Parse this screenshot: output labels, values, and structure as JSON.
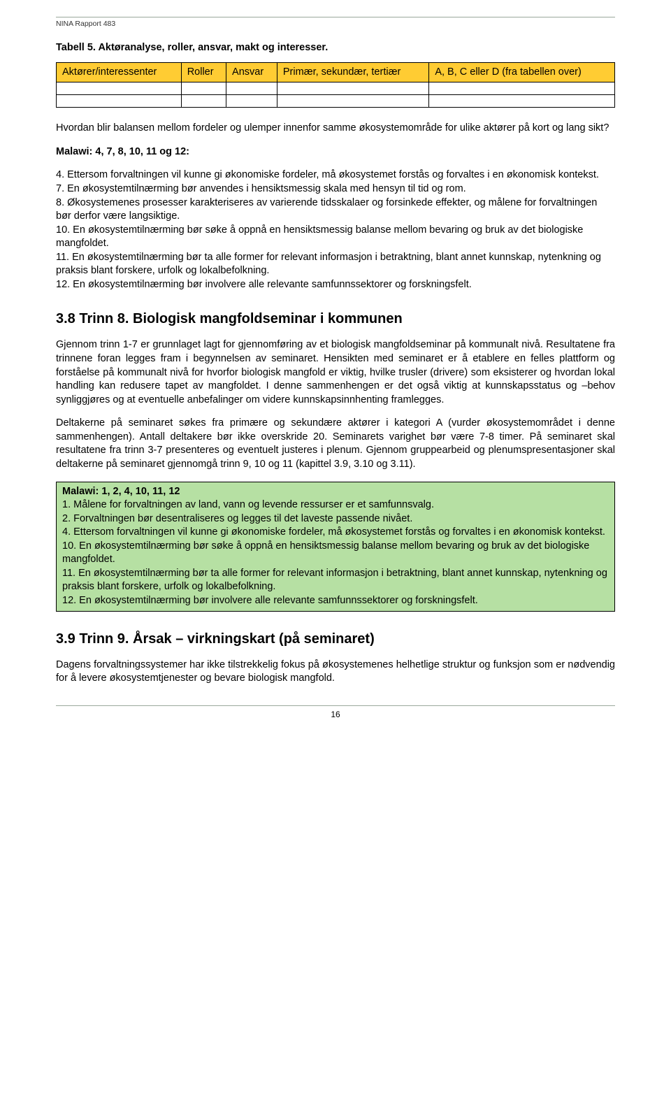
{
  "header": {
    "report": "NINA Rapport 483"
  },
  "caption": {
    "label": "Tabell 5.",
    "text": " Aktøranalyse, roller, ansvar, makt og interesser."
  },
  "table": {
    "header_bg": "#ffcc33",
    "border_color": "#000000",
    "columns": [
      "Aktører/interessenter",
      "Roller",
      "Ansvar",
      "Primær, sekundær, tertiær",
      "A, B, C eller D (fra tabellen over)"
    ],
    "empty_rows": 2
  },
  "section1": {
    "intro": "Hvordan blir balansen mellom fordeler og ulemper innenfor samme økosystemområde for ulike aktører på kort og lang sikt?",
    "malawi_label": "Malawi: 4, 7, 8, 10, 11 og 12:",
    "points": [
      "4. Ettersom forvaltningen vil kunne gi økonomiske fordeler, må økosystemet forstås og forvaltes i en økonomisk kontekst.",
      "7. En økosystemtilnærming bør anvendes i hensiktsmessig skala med hensyn til tid og rom.",
      "8. Økosystemenes prosesser karakteriseres av varierende tidsskalaer og forsinkede effekter, og målene for forvaltningen bør derfor være langsiktige.",
      "10. En økosystemtilnærming bør søke å oppnå en hensiktsmessig balanse mellom bevaring og bruk av det biologiske mangfoldet.",
      "11. En økosystemtilnærming bør ta alle former for relevant informasjon i betraktning, blant annet kunnskap, nytenkning og praksis blant forskere, urfolk og lokalbefolkning.",
      "12. En økosystemtilnærming bør involvere alle relevante samfunnssektorer og forskningsfelt."
    ]
  },
  "section38": {
    "heading": "3.8 Trinn 8. Biologisk mangfoldseminar i kommunen",
    "p1": "Gjennom trinn 1-7 er grunnlaget lagt for gjennomføring av et biologisk mangfoldseminar på kommunalt nivå. Resultatene fra trinnene foran legges fram i begynnelsen av seminaret. Hensikten med seminaret er å etablere en felles plattform og forståelse på kommunalt nivå for hvorfor biologisk mangfold er viktig, hvilke trusler (drivere) som eksisterer og hvordan lokal handling kan redusere tapet av mangfoldet. I denne sammenhengen er det også viktig at kunnskapsstatus og –behov synliggjøres og at eventuelle anbefalinger om videre kunnskapsinnhenting framlegges.",
    "p2": "Deltakerne på seminaret søkes fra primære og sekundære aktører i kategori A (vurder økosystemområdet i denne sammenhengen). Antall deltakere bør ikke overskride 20. Seminarets varighet bør være 7-8 timer. På seminaret skal resultatene fra trinn 3-7 presenteres og eventuelt justeres i plenum. Gjennom gruppearbeid og plenumspresentasjoner skal deltakerne på seminaret gjennomgå trinn 9, 10 og 11 (kapittel 3.9, 3.10 og 3.11)."
  },
  "greenbox": {
    "bg": "#b6e0a3",
    "title": "Malawi: 1, 2, 4, 10, 11, 12",
    "items": [
      "1. Målene for forvaltningen av land, vann og levende ressurser er et samfunnsvalg.",
      "2. Forvaltningen bør desentraliseres og legges til det laveste passende nivået.",
      "4. Ettersom forvaltningen vil kunne gi økonomiske fordeler, må økosystemet forstås og forvaltes i en økonomisk kontekst.",
      "10. En økosystemtilnærming bør søke å oppnå en hensiktsmessig balanse mellom bevaring og bruk av det biologiske mangfoldet.",
      "11. En økosystemtilnærming bør ta alle former for relevant informasjon i betraktning, blant annet kunnskap, nytenkning og praksis blant forskere, urfolk og lokalbefolkning.",
      "12. En økosystemtilnærming bør involvere alle relevante samfunnssektorer og forskningsfelt."
    ]
  },
  "section39": {
    "heading": "3.9 Trinn 9. Årsak – virkningskart (på seminaret)",
    "p1": "Dagens forvaltningssystemer har ikke tilstrekkelig fokus på økosystemenes helhetlige struktur og funksjon som er nødvendig for å levere økosystemtjenester og bevare biologisk mangfold."
  },
  "page_number": "16"
}
